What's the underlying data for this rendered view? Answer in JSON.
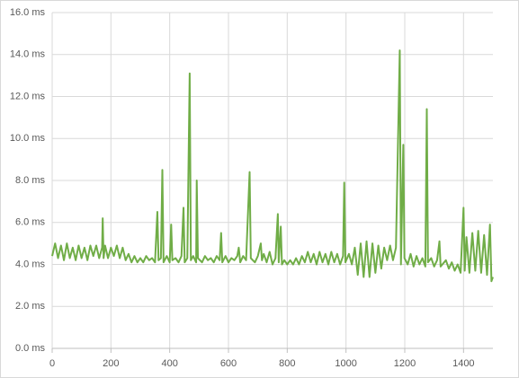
{
  "chart_data": {
    "type": "line",
    "x": [
      0,
      10,
      20,
      30,
      40,
      50,
      60,
      70,
      80,
      90,
      100,
      110,
      120,
      130,
      140,
      150,
      160,
      170,
      172,
      175,
      180,
      190,
      200,
      210,
      220,
      230,
      240,
      250,
      260,
      270,
      280,
      290,
      300,
      310,
      320,
      330,
      340,
      350,
      358,
      362,
      370,
      375,
      379,
      390,
      400,
      405,
      409,
      420,
      430,
      440,
      447,
      451,
      460,
      468,
      472,
      480,
      490,
      492,
      496,
      510,
      520,
      530,
      540,
      550,
      560,
      570,
      575,
      579,
      590,
      600,
      610,
      620,
      630,
      635,
      640,
      650,
      660,
      672,
      676,
      690,
      700,
      710,
      714,
      720,
      730,
      740,
      750,
      760,
      768,
      771,
      778,
      782,
      790,
      800,
      810,
      820,
      830,
      840,
      850,
      860,
      870,
      880,
      890,
      900,
      910,
      920,
      930,
      940,
      950,
      960,
      970,
      980,
      990,
      994,
      998,
      1010,
      1020,
      1030,
      1040,
      1050,
      1060,
      1070,
      1080,
      1090,
      1100,
      1110,
      1120,
      1130,
      1140,
      1150,
      1160,
      1170,
      1183,
      1187,
      1195,
      1199,
      1210,
      1220,
      1230,
      1240,
      1250,
      1260,
      1270,
      1275,
      1279,
      1290,
      1300,
      1310,
      1318,
      1322,
      1340,
      1350,
      1360,
      1370,
      1380,
      1390,
      1400,
      1404,
      1410,
      1420,
      1430,
      1440,
      1450,
      1460,
      1470,
      1480,
      1490,
      1495,
      1500
    ],
    "series": [
      {
        "color": "#70ad47",
        "values": [
          4.4,
          5.0,
          4.3,
          4.9,
          4.2,
          5.0,
          4.3,
          4.8,
          4.2,
          4.9,
          4.3,
          4.8,
          4.2,
          4.9,
          4.4,
          4.9,
          4.3,
          4.8,
          6.2,
          4.3,
          4.9,
          4.3,
          4.8,
          4.4,
          4.9,
          4.3,
          4.8,
          4.2,
          4.5,
          4.1,
          4.4,
          4.1,
          4.3,
          4.1,
          4.4,
          4.2,
          4.3,
          4.1,
          6.5,
          4.2,
          4.3,
          8.5,
          4.1,
          4.4,
          4.1,
          5.9,
          4.2,
          4.3,
          4.1,
          4.4,
          6.7,
          4.1,
          4.3,
          13.1,
          4.2,
          4.4,
          4.1,
          8.0,
          4.3,
          4.1,
          4.4,
          4.2,
          4.3,
          4.1,
          4.4,
          4.2,
          5.5,
          4.1,
          4.4,
          4.1,
          4.3,
          4.2,
          4.4,
          4.8,
          4.1,
          4.4,
          4.2,
          8.4,
          4.3,
          4.1,
          4.4,
          5.0,
          4.2,
          4.5,
          4.1,
          4.6,
          4.0,
          4.3,
          6.4,
          4.1,
          5.8,
          4.0,
          4.2,
          4.0,
          4.2,
          4.0,
          4.3,
          4.0,
          4.4,
          4.1,
          4.6,
          4.1,
          4.5,
          4.0,
          4.6,
          4.1,
          4.5,
          4.0,
          4.6,
          4.1,
          4.5,
          4.0,
          4.4,
          7.9,
          4.1,
          4.5,
          4.0,
          4.8,
          3.5,
          5.0,
          3.4,
          5.1,
          3.4,
          5.0,
          3.6,
          4.9,
          3.8,
          4.8,
          4.2,
          4.9,
          4.2,
          4.8,
          14.2,
          4.0,
          9.7,
          4.3,
          4.0,
          4.5,
          3.9,
          4.4,
          4.0,
          4.3,
          3.9,
          11.4,
          4.1,
          4.3,
          3.9,
          4.2,
          5.1,
          3.9,
          4.2,
          3.8,
          4.1,
          3.7,
          4.0,
          3.6,
          6.7,
          3.7,
          5.3,
          3.6,
          5.5,
          3.7,
          5.6,
          3.6,
          5.4,
          3.5,
          5.9,
          3.2,
          3.4
        ]
      }
    ],
    "xlim": [
      0,
      1500
    ],
    "xticks": [
      0,
      200,
      400,
      600,
      800,
      1000,
      1200,
      1400
    ],
    "ylim": [
      0,
      16
    ],
    "yticks": [
      {
        "value": 0,
        "label": "0.0 ms"
      },
      {
        "value": 2,
        "label": "2.0 ms"
      },
      {
        "value": 4,
        "label": "4.0 ms"
      },
      {
        "value": 6,
        "label": "6.0 ms"
      },
      {
        "value": 8,
        "label": "8.0 ms"
      },
      {
        "value": 10,
        "label": "10.0 ms"
      },
      {
        "value": 12,
        "label": "12.0 ms"
      },
      {
        "value": 14,
        "label": "14.0 ms"
      },
      {
        "value": 16,
        "label": "16.0 ms"
      }
    ],
    "grid": true
  }
}
